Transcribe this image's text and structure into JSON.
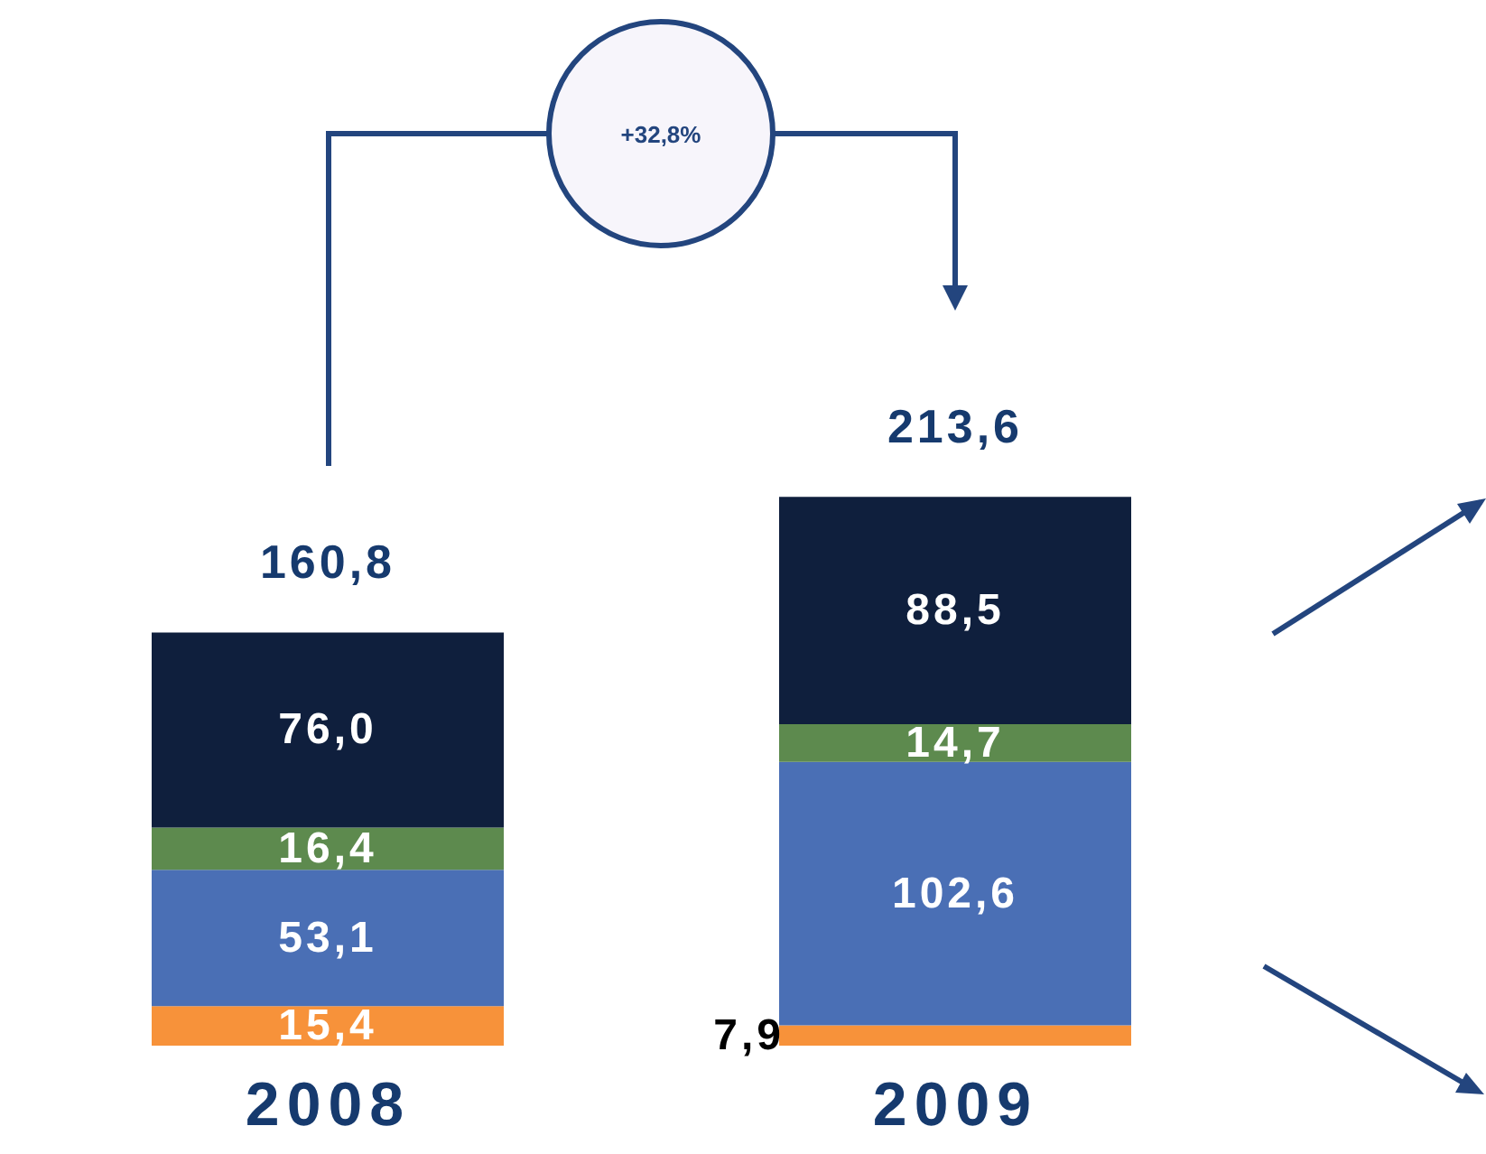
{
  "chart_data": {
    "type": "bar",
    "stacked": true,
    "categories": [
      "2008",
      "2009"
    ],
    "series": [
      {
        "color": "#f7923a",
        "values": [
          15.4,
          7.9
        ],
        "value_labels": [
          "15,4",
          "7,9"
        ]
      },
      {
        "color": "#4a6fb5",
        "values": [
          53.1,
          102.6
        ],
        "value_labels": [
          "53,1",
          "102,6"
        ]
      },
      {
        "color": "#5d8a4e",
        "values": [
          16.4,
          14.7
        ],
        "value_labels": [
          "16,4",
          "14,7"
        ]
      },
      {
        "color": "#0f1f3d",
        "values": [
          76.0,
          88.5
        ],
        "value_labels": [
          "76,0",
          "88,5"
        ]
      }
    ],
    "totals": [
      "160,8",
      "213,6"
    ],
    "annotations": [
      "+32,8%"
    ],
    "legend": false
  }
}
